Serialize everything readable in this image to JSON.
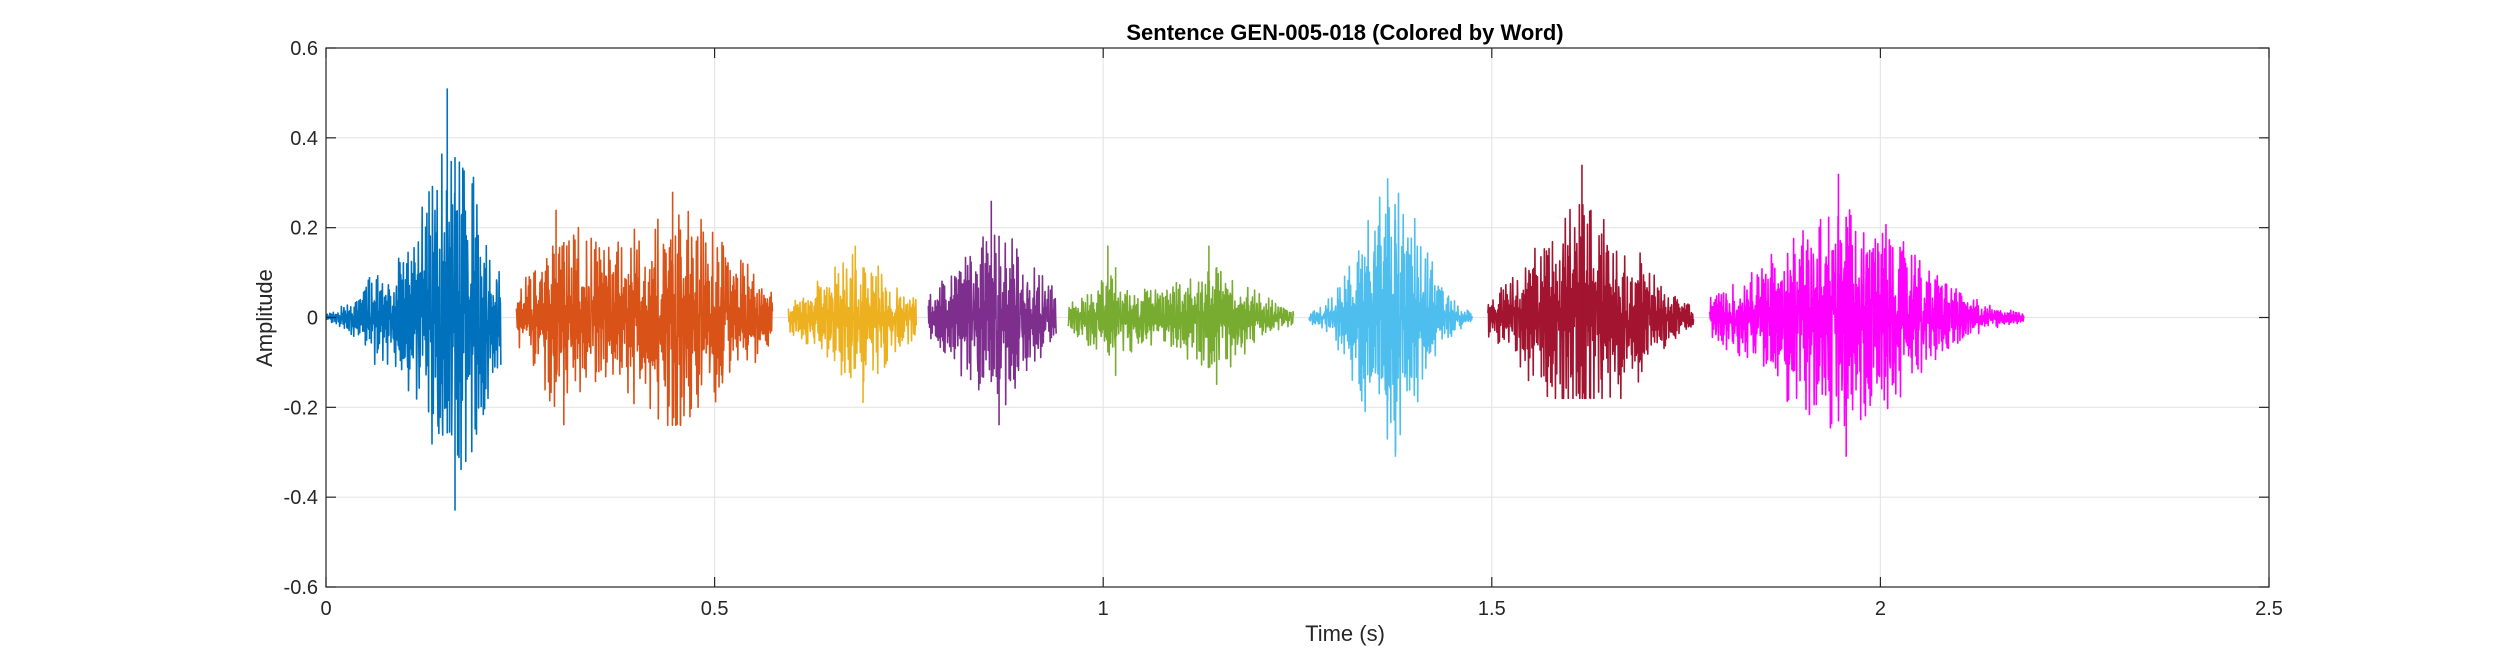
{
  "chart_data": {
    "type": "line",
    "title": "Sentence GEN-005-018 (Colored by Word)",
    "xlabel": "Time (s)",
    "ylabel": "Amplitude",
    "xlim": [
      0,
      2.5
    ],
    "ylim": [
      -0.6,
      0.6
    ],
    "xticks": [
      0,
      0.5,
      1,
      1.5,
      2,
      2.5
    ],
    "xtick_labels": [
      "0",
      "0.5",
      "1",
      "1.5",
      "2",
      "2.5"
    ],
    "yticks": [
      -0.6,
      -0.4,
      -0.2,
      0,
      0.2,
      0.4,
      0.6
    ],
    "ytick_labels": [
      "-0.6",
      "-0.4",
      "-0.2",
      "0",
      "0.2",
      "0.4",
      "0.6"
    ],
    "grid": true,
    "series": [
      {
        "color": "#0072BD",
        "t_start": 0.0,
        "t_end": 0.225,
        "bursts": [
          {
            "center": 0.06,
            "width": 0.025,
            "amp": 0.08,
            "fmax": 0.09,
            "fmin": -0.08
          },
          {
            "center": 0.16,
            "width": 0.04,
            "amp": 0.42,
            "fmax": 0.51,
            "fmin": -0.43
          }
        ]
      },
      {
        "color": "#D95319",
        "t_start": 0.245,
        "t_end": 0.575,
        "bursts": [
          {
            "center": 0.3,
            "width": 0.035,
            "amp": 0.17,
            "fmax": 0.24,
            "fmin": -0.24
          },
          {
            "center": 0.45,
            "width": 0.075,
            "amp": 0.26,
            "fmax": 0.28,
            "fmin": -0.24
          }
        ]
      },
      {
        "color": "#EDB120",
        "t_start": 0.595,
        "t_end": 0.76,
        "bursts": [
          {
            "center": 0.685,
            "width": 0.05,
            "amp": 0.15,
            "fmax": 0.16,
            "fmin": -0.19
          }
        ]
      },
      {
        "color": "#7E2F8E",
        "t_start": 0.775,
        "t_end": 0.94,
        "bursts": [
          {
            "center": 0.86,
            "width": 0.05,
            "amp": 0.2,
            "fmax": 0.26,
            "fmin": -0.24
          }
        ]
      },
      {
        "color": "#77AC30",
        "t_start": 0.955,
        "t_end": 1.245,
        "bursts": [
          {
            "center": 1.01,
            "width": 0.035,
            "amp": 0.09,
            "fmax": 0.16,
            "fmin": -0.13
          },
          {
            "center": 1.14,
            "width": 0.05,
            "amp": 0.12,
            "fmax": 0.16,
            "fmin": -0.15
          }
        ]
      },
      {
        "color": "#4DBEEE",
        "t_start": 1.265,
        "t_end": 1.475,
        "bursts": [
          {
            "center": 1.37,
            "width": 0.04,
            "amp": 0.3,
            "fmax": 0.31,
            "fmin": -0.31
          }
        ]
      },
      {
        "color": "#A2142F",
        "t_start": 1.495,
        "t_end": 1.76,
        "bursts": [
          {
            "center": 1.62,
            "width": 0.065,
            "amp": 0.26,
            "fmax": 0.34,
            "fmin": -0.18
          }
        ]
      },
      {
        "color": "#FF00FF",
        "t_start": 1.78,
        "t_end": 2.185,
        "bursts": [
          {
            "center": 1.95,
            "width": 0.09,
            "amp": 0.26,
            "fmax": 0.32,
            "fmin": -0.31
          }
        ]
      }
    ]
  }
}
